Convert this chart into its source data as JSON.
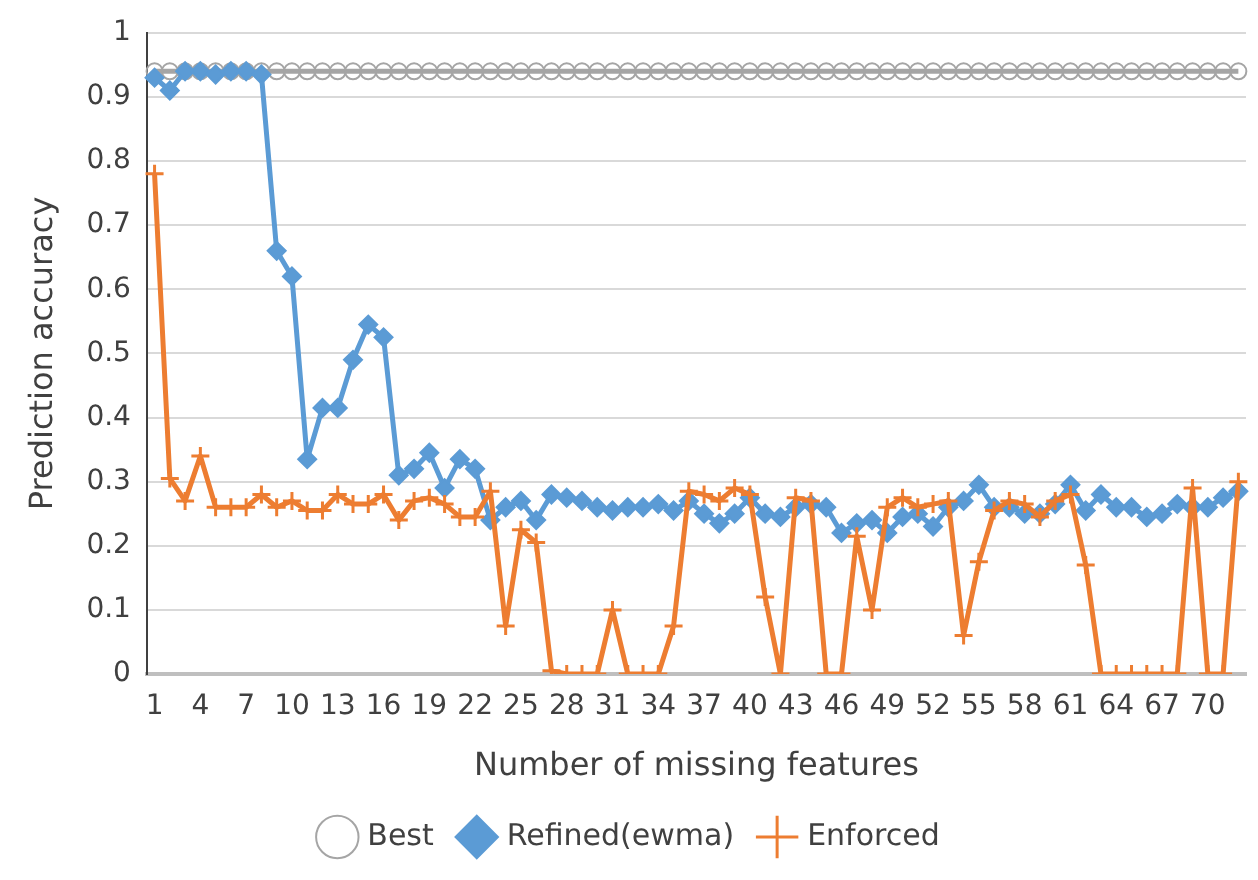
{
  "chart_data": {
    "type": "line",
    "xlabel": "Number of missing features",
    "ylabel": "Prediction accuracy",
    "categories": [
      "1",
      null,
      null,
      "4",
      null,
      null,
      "7",
      null,
      null,
      "10",
      null,
      null,
      "13",
      null,
      null,
      "16",
      null,
      null,
      "19",
      null,
      null,
      "22",
      null,
      null,
      "25",
      null,
      null,
      "28",
      null,
      null,
      "31",
      null,
      null,
      "34",
      null,
      null,
      "37",
      null,
      null,
      "40",
      null,
      null,
      "43",
      null,
      null,
      "46",
      null,
      null,
      "49",
      null,
      null,
      "52",
      null,
      null,
      "55",
      null,
      null,
      "58",
      null,
      null,
      "61",
      null,
      null,
      "64",
      null,
      null,
      "67",
      null,
      null,
      "70",
      null,
      null
    ],
    "series": [
      {
        "name": "Best",
        "color": "#a5a5a5",
        "marker": "circle",
        "values": [
          0.94,
          0.94,
          0.94,
          0.94,
          0.94,
          0.94,
          0.94,
          0.94,
          0.94,
          0.94,
          0.94,
          0.94,
          0.94,
          0.94,
          0.94,
          0.94,
          0.94,
          0.94,
          0.94,
          0.94,
          0.94,
          0.94,
          0.94,
          0.94,
          0.94,
          0.94,
          0.94,
          0.94,
          0.94,
          0.94,
          0.94,
          0.94,
          0.94,
          0.94,
          0.94,
          0.94,
          0.94,
          0.94,
          0.94,
          0.94,
          0.94,
          0.94,
          0.94,
          0.94,
          0.94,
          0.94,
          0.94,
          0.94,
          0.94,
          0.94,
          0.94,
          0.94,
          0.94,
          0.94,
          0.94,
          0.94,
          0.94,
          0.94,
          0.94,
          0.94,
          0.94,
          0.94,
          0.94,
          0.94,
          0.94,
          0.94,
          0.94,
          0.94,
          0.94,
          0.94,
          0.94,
          0.94
        ]
      },
      {
        "name": "Refined(ewma)",
        "color": "#5b9bd5",
        "marker": "diamond",
        "values": [
          0.93,
          0.91,
          0.94,
          0.94,
          0.935,
          0.94,
          0.94,
          0.935,
          0.66,
          0.62,
          0.335,
          0.415,
          0.415,
          0.49,
          0.545,
          0.525,
          0.31,
          0.32,
          0.345,
          0.29,
          0.335,
          0.32,
          0.24,
          0.26,
          0.27,
          0.24,
          0.28,
          0.275,
          0.27,
          0.26,
          0.255,
          0.26,
          0.26,
          0.265,
          0.255,
          0.27,
          0.25,
          0.235,
          0.25,
          0.275,
          0.25,
          0.245,
          0.26,
          0.265,
          0.26,
          0.22,
          0.235,
          0.24,
          0.22,
          0.245,
          0.25,
          0.23,
          0.26,
          0.27,
          0.295,
          0.26,
          0.26,
          0.25,
          0.25,
          0.265,
          0.295,
          0.255,
          0.28,
          0.26,
          0.26,
          0.245,
          0.25,
          0.265,
          0.26,
          0.26,
          0.275,
          0.285
        ]
      },
      {
        "name": "Enforced",
        "color": "#ed7d31",
        "marker": "cross",
        "values": [
          0.78,
          0.305,
          0.27,
          0.34,
          0.26,
          0.26,
          0.26,
          0.28,
          0.26,
          0.27,
          0.255,
          0.255,
          0.28,
          0.265,
          0.265,
          0.28,
          0.24,
          0.27,
          0.275,
          0.265,
          0.245,
          0.245,
          0.285,
          0.075,
          0.225,
          0.205,
          0.005,
          0,
          0,
          0,
          0.1,
          0,
          0,
          0,
          0.075,
          0.285,
          0.28,
          0.27,
          0.29,
          0.28,
          0.12,
          0,
          0.275,
          0.27,
          0,
          0,
          0.215,
          0.1,
          0.26,
          0.275,
          0.26,
          0.265,
          0.27,
          0.06,
          0.175,
          0.255,
          0.27,
          0.265,
          0.245,
          0.27,
          0.28,
          0.17,
          0,
          0,
          0,
          0,
          0,
          0,
          0.29,
          0,
          0,
          0.3
        ]
      }
    ],
    "ylim": [
      0,
      1
    ],
    "yticks": [
      0,
      0.1,
      0.2,
      0.3,
      0.4,
      0.5,
      0.6,
      0.7,
      0.8,
      0.9,
      1
    ],
    "grid": "y",
    "legend": "bottom"
  }
}
